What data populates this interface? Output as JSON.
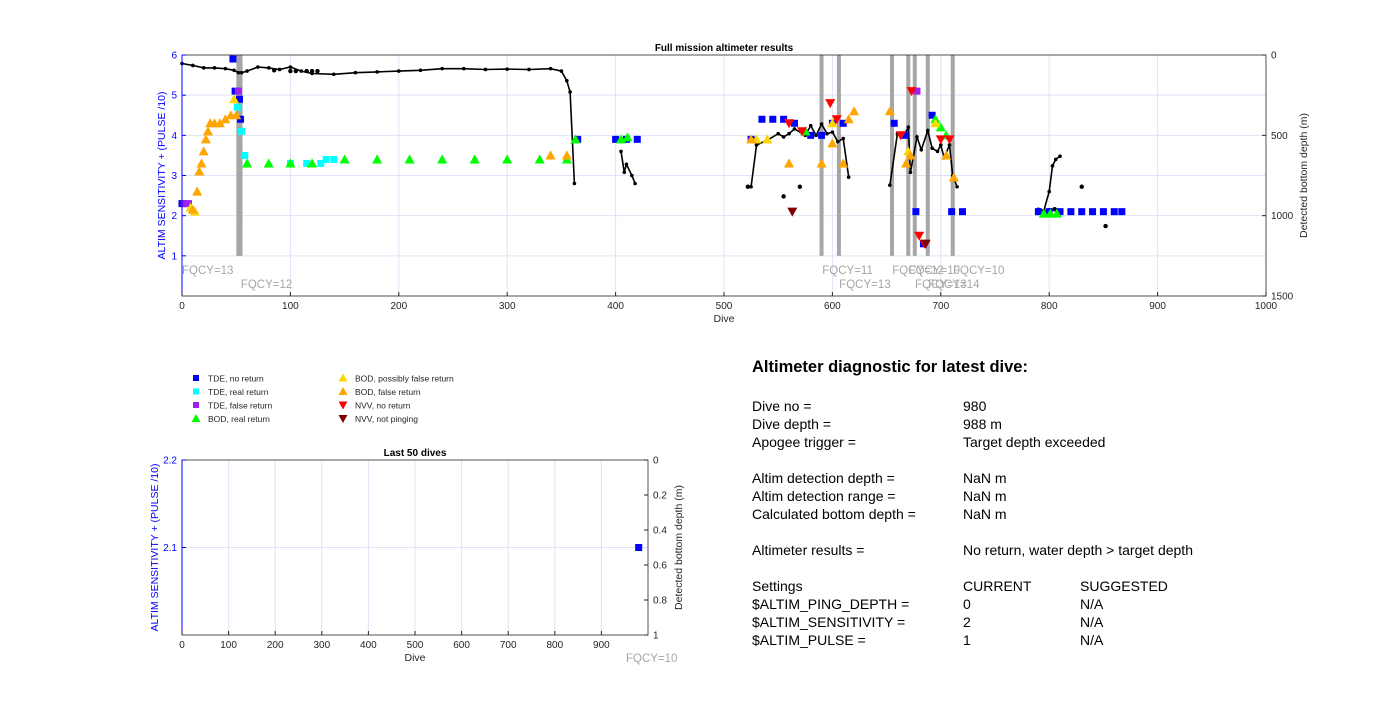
{
  "chart_data": [
    {
      "type": "scatter",
      "title": "Full mission altimeter results",
      "xlabel": "Dive",
      "ylabel": "ALTIM SENSITIVITY + (PULSE /10)",
      "y2label": "Detected bottom depth (m)",
      "xlim": [
        0,
        1000
      ],
      "ylim": [
        0,
        6
      ],
      "y2lim": [
        1500,
        0
      ],
      "xticks": [
        0,
        100,
        200,
        300,
        400,
        500,
        600,
        700,
        800,
        900,
        1000
      ],
      "yticks": [
        1,
        2,
        3,
        4,
        5,
        6
      ],
      "y2ticks": [
        0,
        500,
        1000,
        1500
      ],
      "grid": true,
      "fqcy_markers": [
        {
          "dive": 52,
          "label": "FQCY=13",
          "row": 1
        },
        {
          "dive": 54,
          "label": "FQCY=12",
          "row": 2
        },
        {
          "dive": 590,
          "label": "FQCY=11",
          "row": 1
        },
        {
          "dive": 606,
          "label": "FQCY=13",
          "row": 2
        },
        {
          "dive": 655,
          "label": "FQCY=12",
          "row": 1
        },
        {
          "dive": 670,
          "label": "FQCY=10",
          "row": 1
        },
        {
          "dive": 676,
          "label": "FQCY=13",
          "row": 2
        },
        {
          "dive": 688,
          "label": "FQCY=14",
          "row": 2
        },
        {
          "dive": 711,
          "label": "FQCY=10",
          "row": 1
        }
      ],
      "series": [
        {
          "name": "TDE, no return",
          "color": "#0000ff",
          "marker": "square",
          "points": [
            [
              0,
              2.3
            ],
            [
              47,
              5.9
            ],
            [
              49,
              5.1
            ],
            [
              53,
              4.9
            ],
            [
              54,
              4.4
            ],
            [
              365,
              3.9
            ],
            [
              400,
              3.9
            ],
            [
              410,
              3.9
            ],
            [
              420,
              3.9
            ],
            [
              525,
              3.9
            ],
            [
              535,
              4.4
            ],
            [
              545,
              4.4
            ],
            [
              555,
              4.4
            ],
            [
              565,
              4.3
            ],
            [
              580,
              4.0
            ],
            [
              590,
              4.0
            ],
            [
              600,
              4.3
            ],
            [
              610,
              4.3
            ],
            [
              657,
              4.3
            ],
            [
              667,
              4.0
            ],
            [
              677,
              2.1
            ],
            [
              684,
              1.3
            ],
            [
              692,
              4.5
            ],
            [
              710,
              2.1
            ],
            [
              720,
              2.1
            ],
            [
              790,
              2.1
            ],
            [
              800,
              2.1
            ],
            [
              810,
              2.1
            ],
            [
              820,
              2.1
            ],
            [
              830,
              2.1
            ],
            [
              840,
              2.1
            ],
            [
              850,
              2.1
            ],
            [
              860,
              2.1
            ],
            [
              867,
              2.1
            ]
          ]
        },
        {
          "name": "TDE, real return",
          "color": "#00ffff",
          "marker": "square",
          "points": [
            [
              51,
              4.7
            ],
            [
              55,
              4.1
            ],
            [
              58,
              3.5
            ],
            [
              100,
              3.3
            ],
            [
              115,
              3.3
            ],
            [
              128,
              3.3
            ],
            [
              133,
              3.4
            ],
            [
              140,
              3.4
            ]
          ]
        },
        {
          "name": "TDE, false return",
          "color": "#a020f0",
          "marker": "square",
          "points": [
            [
              2,
              2.3
            ],
            [
              6,
              2.3
            ],
            [
              52,
              5.1
            ],
            [
              678,
              5.1
            ]
          ]
        },
        {
          "name": "BOD, real return",
          "color": "#00ff00",
          "marker": "triangle-up",
          "points": [
            [
              60,
              3.3
            ],
            [
              80,
              3.3
            ],
            [
              100,
              3.3
            ],
            [
              120,
              3.3
            ],
            [
              150,
              3.4
            ],
            [
              180,
              3.4
            ],
            [
              210,
              3.4
            ],
            [
              240,
              3.4
            ],
            [
              270,
              3.4
            ],
            [
              300,
              3.4
            ],
            [
              330,
              3.4
            ],
            [
              355,
              3.4
            ],
            [
              363,
              3.9
            ],
            [
              405,
              3.9
            ],
            [
              411,
              3.95
            ],
            [
              575,
              4.1
            ],
            [
              695,
              4.4
            ],
            [
              700,
              4.2
            ],
            [
              705,
              4.0
            ],
            [
              795,
              2.05
            ],
            [
              801,
              2.05
            ],
            [
              807,
              2.05
            ]
          ]
        },
        {
          "name": "BOD, possibly false return",
          "color": "#ffd700",
          "marker": "triangle-up",
          "points": [
            [
              8,
              2.2
            ],
            [
              12,
              2.1
            ],
            [
              48,
              4.9
            ],
            [
              530,
              3.9
            ],
            [
              540,
              3.9
            ],
            [
              600,
              4.3
            ],
            [
              670,
              3.6
            ],
            [
              695,
              4.3
            ]
          ]
        },
        {
          "name": "BOD, false return",
          "color": "#ffa500",
          "marker": "triangle-up",
          "points": [
            [
              10,
              2.15
            ],
            [
              14,
              2.6
            ],
            [
              16,
              3.1
            ],
            [
              18,
              3.3
            ],
            [
              20,
              3.6
            ],
            [
              22,
              3.9
            ],
            [
              24,
              4.1
            ],
            [
              26,
              4.3
            ],
            [
              30,
              4.3
            ],
            [
              35,
              4.3
            ],
            [
              40,
              4.4
            ],
            [
              45,
              4.5
            ],
            [
              50,
              4.5
            ],
            [
              340,
              3.5
            ],
            [
              355,
              3.5
            ],
            [
              525,
              3.9
            ],
            [
              560,
              3.3
            ],
            [
              590,
              3.3
            ],
            [
              600,
              3.8
            ],
            [
              610,
              3.3
            ],
            [
              615,
              4.4
            ],
            [
              620,
              4.6
            ],
            [
              653,
              4.6
            ],
            [
              668,
              3.3
            ],
            [
              672,
              3.5
            ],
            [
              705,
              3.5
            ],
            [
              712,
              2.95
            ]
          ]
        },
        {
          "name": "NVV, no return",
          "color": "#ff0000",
          "marker": "triangle-down",
          "points": [
            [
              560,
              4.3
            ],
            [
              572,
              4.1
            ],
            [
              598,
              4.8
            ],
            [
              604,
              4.4
            ],
            [
              663,
              4.0
            ],
            [
              673,
              5.1
            ],
            [
              680,
              1.5
            ],
            [
              685,
              1.3
            ],
            [
              700,
              3.9
            ],
            [
              708,
              3.9
            ]
          ]
        },
        {
          "name": "NVV, not pinging",
          "color": "#800000",
          "marker": "triangle-down",
          "points": [
            [
              563,
              2.1
            ],
            [
              686,
              1.3
            ]
          ]
        }
      ],
      "bottom_depth_line": [
        [
          0,
          53
        ],
        [
          10,
          65
        ],
        [
          20,
          80
        ],
        [
          30,
          80
        ],
        [
          40,
          85
        ],
        [
          48,
          95
        ],
        [
          52,
          110
        ],
        [
          55,
          110
        ],
        [
          60,
          100
        ],
        [
          70,
          75
        ],
        [
          80,
          80
        ],
        [
          90,
          90
        ],
        [
          100,
          75
        ],
        [
          110,
          100
        ],
        [
          120,
          115
        ],
        [
          140,
          120
        ],
        [
          160,
          110
        ],
        [
          180,
          105
        ],
        [
          200,
          100
        ],
        [
          220,
          95
        ],
        [
          240,
          85
        ],
        [
          260,
          85
        ],
        [
          280,
          90
        ],
        [
          300,
          88
        ],
        [
          320,
          90
        ],
        [
          340,
          85
        ],
        [
          350,
          100
        ],
        [
          355,
          160
        ],
        [
          358,
          230
        ],
        [
          362,
          800
        ],
        [
          405,
          600
        ],
        [
          408,
          730
        ],
        [
          410,
          680
        ],
        [
          415,
          750
        ],
        [
          418,
          800
        ],
        [
          525,
          820
        ],
        [
          530,
          560
        ],
        [
          540,
          530
        ],
        [
          550,
          490
        ],
        [
          555,
          510
        ],
        [
          560,
          490
        ],
        [
          565,
          460
        ],
        [
          575,
          500
        ],
        [
          580,
          440
        ],
        [
          585,
          500
        ],
        [
          590,
          430
        ],
        [
          595,
          490
        ],
        [
          600,
          480
        ],
        [
          605,
          540
        ],
        [
          610,
          520
        ],
        [
          615,
          760
        ],
        [
          653,
          810
        ],
        [
          660,
          490
        ],
        [
          665,
          510
        ],
        [
          670,
          450
        ],
        [
          672,
          730
        ],
        [
          678,
          510
        ],
        [
          682,
          590
        ],
        [
          688,
          470
        ],
        [
          692,
          580
        ],
        [
          697,
          600
        ],
        [
          700,
          560
        ],
        [
          703,
          640
        ],
        [
          708,
          560
        ],
        [
          711,
          750
        ],
        [
          715,
          820
        ],
        [
          790,
          960
        ],
        [
          795,
          970
        ],
        [
          800,
          850
        ],
        [
          803,
          690
        ],
        [
          806,
          650
        ],
        [
          810,
          630
        ]
      ],
      "bottom_depth_points": [
        [
          85,
          95
        ],
        [
          100,
          100
        ],
        [
          105,
          100
        ],
        [
          115,
          100
        ],
        [
          120,
          100
        ],
        [
          125,
          100
        ],
        [
          522,
          820
        ],
        [
          555,
          880
        ],
        [
          570,
          820
        ],
        [
          800,
          965
        ],
        [
          805,
          960
        ],
        [
          830,
          820
        ],
        [
          852,
          1065
        ]
      ]
    },
    {
      "type": "scatter",
      "title": "Last 50 dives",
      "xlabel": "Dive",
      "ylabel": "ALTIM SENSITIVITY + (PULSE /10)",
      "y2label": "Detected bottom depth (m)",
      "xlim": [
        0,
        1000
      ],
      "ylim": [
        2.0,
        2.2
      ],
      "y2lim": [
        1,
        0
      ],
      "xticks": [
        0,
        100,
        200,
        300,
        400,
        500,
        600,
        700,
        800,
        900
      ],
      "yticks": [
        2.1,
        2.2
      ],
      "y2ticks": [
        0,
        0.2,
        0.4,
        0.6,
        0.8,
        1
      ],
      "y2ticklabels": [
        "0",
        "0.2",
        "0.4",
        "0.6",
        "0.8",
        "1"
      ],
      "grid": true,
      "fqcy_label": "FQCY=10",
      "series": [
        {
          "name": "TDE, no return",
          "color": "#0000ff",
          "marker": "square",
          "points": [
            [
              980,
              2.1
            ]
          ]
        }
      ]
    }
  ],
  "legend": [
    {
      "label": "TDE, no return",
      "color": "#0000ff",
      "marker": "square"
    },
    {
      "label": "TDE, real return",
      "color": "#00ffff",
      "marker": "square"
    },
    {
      "label": "TDE, false return",
      "color": "#a020f0",
      "marker": "square"
    },
    {
      "label": "BOD, real return",
      "color": "#00ff00",
      "marker": "triangle-up"
    },
    {
      "label": "BOD, possibly false return",
      "color": "#ffd700",
      "marker": "triangle-up"
    },
    {
      "label": "BOD, false return",
      "color": "#ffa500",
      "marker": "triangle-up"
    },
    {
      "label": "NVV, no return",
      "color": "#ff0000",
      "marker": "triangle-down"
    },
    {
      "label": "NVV, not pinging",
      "color": "#800000",
      "marker": "triangle-down"
    }
  ],
  "diagnostic": {
    "heading": "Altimeter diagnostic for latest dive:",
    "dive_no_label": "Dive no =",
    "dive_no": "980",
    "dive_depth_label": "Dive depth =",
    "dive_depth": "988 m",
    "apogee_label": "Apogee trigger =",
    "apogee": "Target depth exceeded",
    "altim_det_depth_label": "Altim detection depth =",
    "altim_det_depth": "NaN m",
    "altim_det_range_label": "Altim detection range =",
    "altim_det_range": "NaN m",
    "calc_bottom_label": "Calculated bottom depth =",
    "calc_bottom": "NaN m",
    "results_label": "Altimeter results =",
    "results": "No return, water depth > target depth",
    "settings_label": "Settings",
    "current_label": "CURRENT",
    "suggested_label": "SUGGESTED",
    "settings": [
      {
        "name": "$ALTIM_PING_DEPTH =",
        "current": "0",
        "suggested": "N/A"
      },
      {
        "name": "$ALTIM_SENSITIVITY =",
        "current": "2",
        "suggested": "N/A"
      },
      {
        "name": "$ALTIM_PULSE =",
        "current": "1",
        "suggested": "N/A"
      }
    ]
  },
  "colors": {
    "axis_left": "#0000ff",
    "grid": "#dde4f5",
    "fqcy_bar": "#a6a6a6",
    "fqcy_text": "#a6a6a6"
  }
}
